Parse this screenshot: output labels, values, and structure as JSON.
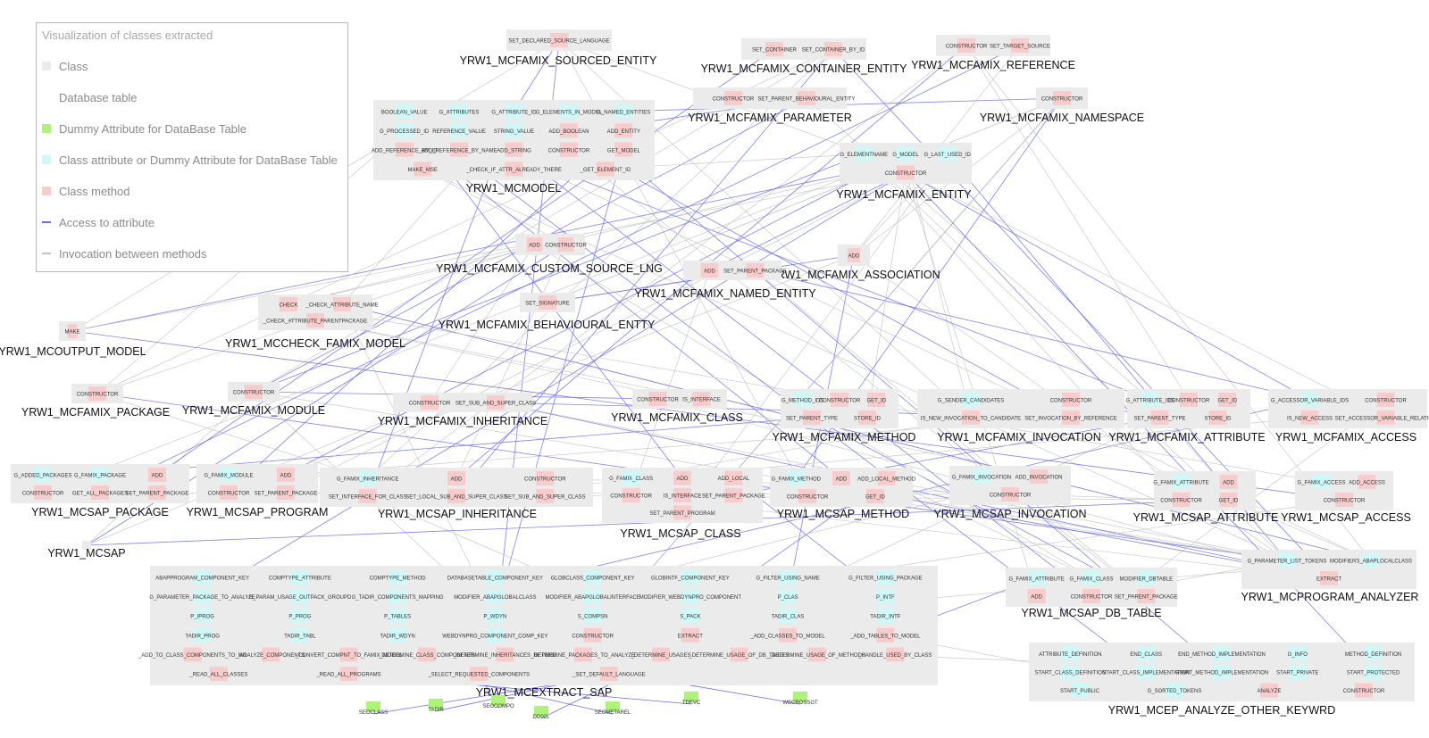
{
  "legend": {
    "title": "Visualization of classes extracted",
    "items": [
      {
        "label": "Class",
        "kind": "swatch",
        "color": "#ebebeb"
      },
      {
        "label": "Database table",
        "kind": "swatch",
        "color": "#ffffff"
      },
      {
        "label": "Dummy Attribute for DataBase Table",
        "kind": "swatch",
        "color": "#aef27a"
      },
      {
        "label": "Class attribute or Dummy Attribute for DataBase Table",
        "kind": "swatch",
        "color": "#cff8f8"
      },
      {
        "label": "Class method",
        "kind": "swatch",
        "color": "#f8cccc"
      },
      {
        "label": "Access to attribute",
        "kind": "line",
        "color": "#6c6ce6"
      },
      {
        "label": "Invocation between methods",
        "kind": "line",
        "color": "#c4c4c4"
      }
    ]
  },
  "colors": {
    "class_bg": "#ebebeb",
    "attribute": "#cff8f8",
    "method": "#f8cccc",
    "dummy": "#aef27a",
    "access_edge": "#6c6ce6",
    "invocation_edge": "#c4c4c4"
  },
  "classes": [
    {
      "name": "YRW1_MCFAMIX_SOURCED_ENTITY",
      "members": [
        {
          "t": "m",
          "n": "SET_DECLARED_SOURCE_LANGUAGE"
        }
      ]
    },
    {
      "name": "YRW1_MCFAMIX_CONTAINER_ENTITY",
      "members": [
        {
          "t": "m",
          "n": "SET_CONTAINER"
        },
        {
          "t": "m",
          "n": "SET_CONTAINER_BY_ID"
        }
      ]
    },
    {
      "name": "YRW1_MCFAMIX_REFERENCE",
      "members": [
        {
          "t": "m",
          "n": "CONSTRUCTOR"
        },
        {
          "t": "m",
          "n": "SET_TARGET_SOURCE"
        }
      ]
    },
    {
      "name": "YRW1_MCFAMIX_NAMESPACE",
      "members": [
        {
          "t": "m",
          "n": "CONSTRUCTOR"
        }
      ]
    },
    {
      "name": "YRW1_MCFAMIX_PARAMETER",
      "members": [
        {
          "t": "m",
          "n": "CONSTRUCTOR"
        },
        {
          "t": "m",
          "n": "SET_PARENT_BEHAVIOURAL_ENTITY"
        }
      ]
    },
    {
      "name": "YRW1_MCMODEL",
      "members": [
        {
          "t": "a",
          "n": "BOOLEAN_VALUE"
        },
        {
          "t": "a",
          "n": "G_ATTRIBUTES"
        },
        {
          "t": "a",
          "n": "G_ATTRIBUTE_ID"
        },
        {
          "t": "a",
          "n": "G_ELEMENTS_IN_MODEL"
        },
        {
          "t": "a",
          "n": "G_NAMED_ENTITIES"
        },
        {
          "t": "a",
          "n": "G_PROCESSED_ID"
        },
        {
          "t": "a",
          "n": "REFERENCE_VALUE"
        },
        {
          "t": "a",
          "n": "STRING_VALUE"
        },
        {
          "t": "m",
          "n": "ADD_BOOLEAN"
        },
        {
          "t": "m",
          "n": "ADD_ENTITY"
        },
        {
          "t": "m",
          "n": "ADD_REFERENCE_BY_ID"
        },
        {
          "t": "m",
          "n": "ADD_REFERENCE_BY_NAME"
        },
        {
          "t": "m",
          "n": "ADD_STRING"
        },
        {
          "t": "m",
          "n": "CONSTRUCTOR"
        },
        {
          "t": "m",
          "n": "GET_MODEL"
        },
        {
          "t": "m",
          "n": "MAKE_MSE"
        },
        {
          "t": "m",
          "n": "_CHECK_IF_ATTR_ALREADY_THERE"
        },
        {
          "t": "m",
          "n": "_GET_ELEMENT_ID"
        }
      ]
    },
    {
      "name": "YRW1_MCFAMIX_ENTITY",
      "members": [
        {
          "t": "a",
          "n": "G_ELEMENTNAME"
        },
        {
          "t": "a",
          "n": "G_MODEL"
        },
        {
          "t": "a",
          "n": "G_LAST_USED_ID"
        },
        {
          "t": "m",
          "n": "CONSTRUCTOR"
        }
      ]
    },
    {
      "name": "YRW1_MCFAMIX_CUSTOM_SOURCE_LNG",
      "members": [
        {
          "t": "m",
          "n": "ADD"
        },
        {
          "t": "m",
          "n": "CONSTRUCTOR"
        }
      ]
    },
    {
      "name": "YRW1_MCFAMIX_ASSOCIATION",
      "members": [
        {
          "t": "m",
          "n": "ADD"
        }
      ]
    },
    {
      "name": "YRW1_MCFAMIX_NAMED_ENTITY",
      "members": [
        {
          "t": "m",
          "n": "ADD"
        },
        {
          "t": "m",
          "n": "SET_PARENT_PACKAGE"
        }
      ]
    },
    {
      "name": "YRW1_MCFAMIX_BEHAVIOURAL_ENTTY",
      "members": [
        {
          "t": "m",
          "n": "SET_SIGNATURE"
        }
      ]
    },
    {
      "name": "YRW1_MCCHECK_FAMIX_MODEL",
      "members": [
        {
          "t": "m",
          "n": "CHECK"
        },
        {
          "t": "m",
          "n": "_CHECK_ATTRIBUTE_NAME"
        },
        {
          "t": "m",
          "n": "_CHECK_ATTRIBUTE_PARENTPACKAGE"
        }
      ]
    },
    {
      "name": "YRW1_MCOUTPUT_MODEL",
      "members": [
        {
          "t": "m",
          "n": "MAKE"
        }
      ]
    },
    {
      "name": "YRW1_MCFAMIX_PACKAGE",
      "members": [
        {
          "t": "m",
          "n": "CONSTRUCTOR"
        }
      ]
    },
    {
      "name": "YRW1_MCFAMIX_MODULE",
      "members": [
        {
          "t": "m",
          "n": "CONSTRUCTOR"
        }
      ]
    },
    {
      "name": "YRW1_MCFAMIX_INHERITANCE",
      "members": [
        {
          "t": "m",
          "n": "CONSTRUCTOR"
        },
        {
          "t": "m",
          "n": "SET_SUB_AND_SUPER_CLASS"
        }
      ]
    },
    {
      "name": "YRW1_MCFAMIX_CLASS",
      "members": [
        {
          "t": "m",
          "n": "CONSTRUCTOR"
        },
        {
          "t": "m",
          "n": "IS_INTERFACE"
        }
      ]
    },
    {
      "name": "YRW1_MCFAMIX_METHOD",
      "members": [
        {
          "t": "a",
          "n": "G_METHOD_IDS"
        },
        {
          "t": "m",
          "n": "CONSTRUCTOR"
        },
        {
          "t": "m",
          "n": "GET_ID"
        },
        {
          "t": "m",
          "n": "SET_PARENT_TYPE"
        },
        {
          "t": "m",
          "n": "STORE_ID"
        }
      ]
    },
    {
      "name": "YRW1_MCFAMIX_INVOCATION",
      "members": [
        {
          "t": "a",
          "n": "G_SENDER_CANDIDATES"
        },
        {
          "t": "m",
          "n": "CONSTRUCTOR"
        },
        {
          "t": "m",
          "n": "IS_NEW_INVOCATION_TO_CANDIDATE"
        },
        {
          "t": "m",
          "n": "SET_INVOCATION_BY_REFERENCE"
        }
      ]
    },
    {
      "name": "YRW1_MCFAMIX_ATTRIBUTE",
      "members": [
        {
          "t": "a",
          "n": "G_ATTRIBUTE_IDS"
        },
        {
          "t": "m",
          "n": "CONSTRUCTOR"
        },
        {
          "t": "m",
          "n": "GET_ID"
        },
        {
          "t": "m",
          "n": "SET_PARENT_TYPE"
        },
        {
          "t": "m",
          "n": "STORE_ID"
        }
      ]
    },
    {
      "name": "YRW1_MCFAMIX_ACCESS",
      "members": [
        {
          "t": "a",
          "n": "G_ACCESSOR_VARIABLE_IDS"
        },
        {
          "t": "m",
          "n": "CONSTRUCTOR"
        },
        {
          "t": "m",
          "n": "IS_NEW_ACCESS"
        },
        {
          "t": "m",
          "n": "SET_ACCESSOR_VARIABLE_RELATION"
        }
      ]
    },
    {
      "name": "YRW1_MCSAP_PACKAGE",
      "members": [
        {
          "t": "a",
          "n": "G_ADDED_PACKAGES"
        },
        {
          "t": "a",
          "n": "G_FAMIX_PACKAGE"
        },
        {
          "t": "m",
          "n": "ADD"
        },
        {
          "t": "m",
          "n": "CONSTRUCTOR"
        },
        {
          "t": "m",
          "n": "GET_ALL_PACKAGES"
        },
        {
          "t": "m",
          "n": "SET_PARENT_PACKAGE"
        }
      ]
    },
    {
      "name": "YRW1_MCSAP_PROGRAM",
      "members": [
        {
          "t": "a",
          "n": "G_FAMIX_MODULE"
        },
        {
          "t": "m",
          "n": "ADD"
        },
        {
          "t": "m",
          "n": "CONSTRUCTOR"
        },
        {
          "t": "m",
          "n": "SET_PARENT_PACKAGE"
        }
      ]
    },
    {
      "name": "YRW1_MCSAP_INHERITANCE",
      "members": [
        {
          "t": "a",
          "n": "G_FAMIX_INHERITANCE"
        },
        {
          "t": "m",
          "n": "ADD"
        },
        {
          "t": "m",
          "n": "CONSTRUCTOR"
        },
        {
          "t": "m",
          "n": "SET_INTERFACE_FOR_CLASS"
        },
        {
          "t": "m",
          "n": "SET_LOCAL_SUB_AND_SUPER_CLASS"
        },
        {
          "t": "m",
          "n": "SET_SUB_AND_SUPER_CLASS"
        }
      ]
    },
    {
      "name": "YRW1_MCSAP_CLASS",
      "members": [
        {
          "t": "a",
          "n": "G_FAMIX_CLASS"
        },
        {
          "t": "m",
          "n": "ADD"
        },
        {
          "t": "m",
          "n": "ADD_LOCAL"
        },
        {
          "t": "m",
          "n": "CONSTRUCTOR"
        },
        {
          "t": "m",
          "n": "IS_INTERFACE"
        },
        {
          "t": "m",
          "n": "SET_PARENT_PACKAGE"
        },
        {
          "t": "m",
          "n": "SET_PARENT_PROGRAM"
        }
      ]
    },
    {
      "name": "YRW1_MCSAP_METHOD",
      "members": [
        {
          "t": "a",
          "n": "G_FAMIX_METHOD"
        },
        {
          "t": "m",
          "n": "ADD"
        },
        {
          "t": "m",
          "n": "ADD_LOCAL_METHOD"
        },
        {
          "t": "m",
          "n": "CONSTRUCTOR"
        },
        {
          "t": "m",
          "n": "GET_ID"
        }
      ]
    },
    {
      "name": "YRW1_MCSAP_INVOCATION",
      "members": [
        {
          "t": "a",
          "n": "G_FAMIX_INVOCATION"
        },
        {
          "t": "m",
          "n": "ADD_INVOCATION"
        },
        {
          "t": "m",
          "n": "CONSTRUCTOR"
        }
      ]
    },
    {
      "name": "YRW1_MCSAP_ATTRIBUTE",
      "members": [
        {
          "t": "a",
          "n": "G_FAMIX_ATTRIBUTE"
        },
        {
          "t": "m",
          "n": "ADD"
        },
        {
          "t": "m",
          "n": "CONSTRUCTOR"
        },
        {
          "t": "m",
          "n": "GET_ID"
        }
      ]
    },
    {
      "name": "YRW1_MCSAP_ACCESS",
      "members": [
        {
          "t": "a",
          "n": "G_FAMIX_ACCESS"
        },
        {
          "t": "m",
          "n": "ADD_ACCESS"
        },
        {
          "t": "m",
          "n": "CONSTRUCTOR"
        }
      ]
    },
    {
      "name": "YRW1_MCSAP",
      "members": []
    },
    {
      "name": "YRW1_MCPROGRAM_ANALYZER",
      "members": [
        {
          "t": "a",
          "n": "G_PARAMETER_LIST_TOKENS"
        },
        {
          "t": "a",
          "n": "MODIFIERS_ABAPLOCALCLASS"
        },
        {
          "t": "m",
          "n": "EXTRACT"
        }
      ]
    },
    {
      "name": "YRW1_MCSAP_DB_TABLE",
      "members": [
        {
          "t": "a",
          "n": "G_FAMIX_ATTRIBUTE"
        },
        {
          "t": "a",
          "n": "G_FAMIX_CLASS"
        },
        {
          "t": "a",
          "n": "MODIFIER_DBTABLE"
        },
        {
          "t": "m",
          "n": "ADD"
        },
        {
          "t": "m",
          "n": "CONSTRUCTOR"
        },
        {
          "t": "m",
          "n": "SET_PARENT_PACKAGE"
        }
      ]
    },
    {
      "name": "YRW1_MCEXTRACT_SAP",
      "members": [
        {
          "t": "a",
          "n": "ABAPPROGRAM_COMPONENT_KEY"
        },
        {
          "t": "a",
          "n": "COMPTYPE_ATTRIBUTE"
        },
        {
          "t": "a",
          "n": "COMPTYPE_METHOD"
        },
        {
          "t": "a",
          "n": "DATABASETABLE_COMPONENT_KEY"
        },
        {
          "t": "a",
          "n": "GLOBCLASS_COMPONENT_KEY"
        },
        {
          "t": "a",
          "n": "GLOBINTF_COMPONENT_KEY"
        },
        {
          "t": "a",
          "n": "G_FILTER_USING_NAME"
        },
        {
          "t": "a",
          "n": "G_FILTER_USING_PACKAGE"
        },
        {
          "t": "a",
          "n": "G_PARAMETER_PACKAGE_TO_ANALYZE"
        },
        {
          "t": "a",
          "n": "G_PARAM_USAGE_OUTPACK_GROUPD"
        },
        {
          "t": "a",
          "n": "G_TADIR_COMPONENTS_MAPPING"
        },
        {
          "t": "a",
          "n": "MODIFIER_ABAPGLOBALCLASS"
        },
        {
          "t": "a",
          "n": "MODIFIER_ABAPGLOBALINTERFACE"
        },
        {
          "t": "a",
          "n": "MODIFIER_WEBDYNPRO_COMPONENT"
        },
        {
          "t": "a",
          "n": "P_CLAS"
        },
        {
          "t": "a",
          "n": "P_INTF"
        },
        {
          "t": "a",
          "n": "P_IPROG"
        },
        {
          "t": "a",
          "n": "P_PROG"
        },
        {
          "t": "a",
          "n": "P_TABLES"
        },
        {
          "t": "a",
          "n": "P_WDYN"
        },
        {
          "t": "a",
          "n": "S_COMPSN"
        },
        {
          "t": "a",
          "n": "S_PACK"
        },
        {
          "t": "a",
          "n": "TADIR_CLAS"
        },
        {
          "t": "a",
          "n": "TADIR_INTF"
        },
        {
          "t": "a",
          "n": "TADIR_PROG"
        },
        {
          "t": "a",
          "n": "TADIR_TABL"
        },
        {
          "t": "a",
          "n": "TADIR_WDYN"
        },
        {
          "t": "a",
          "n": "WEBDYNPRO_COMPONENT_COMP_KEY"
        },
        {
          "t": "m",
          "n": "CONSTRUCTOR"
        },
        {
          "t": "m",
          "n": "EXTRACT"
        },
        {
          "t": "m",
          "n": "_ADD_CLASSES_TO_MODEL"
        },
        {
          "t": "m",
          "n": "_ADD_TABLES_TO_MODEL"
        },
        {
          "t": "m",
          "n": "_ADD_TO_CLASS_COMPONENTS_TO_MO"
        },
        {
          "t": "m",
          "n": "_ANALYZE_COMPONENTS"
        },
        {
          "t": "m",
          "n": "_CONVERT_COMPNT_TO_FAMIX_MODEL"
        },
        {
          "t": "m",
          "n": "_DETERMINE_CLASS_COMPONENTS"
        },
        {
          "t": "m",
          "n": "_DETERMINE_INHERITANCES_BETWEE"
        },
        {
          "t": "m",
          "n": "_DETERMINE_PACKAGES_TO_ANALYZE"
        },
        {
          "t": "m",
          "n": "_DETERMINE_USAGES"
        },
        {
          "t": "m",
          "n": "_DETERMINE_USAGE_OF_DB_TABLES"
        },
        {
          "t": "m",
          "n": "_DETERMINE_USAGE_OF_METHODS"
        },
        {
          "t": "m",
          "n": "_HANDLE_USED_BY_CLASS"
        },
        {
          "t": "m",
          "n": "_READ_ALL_CLASSES"
        },
        {
          "t": "m",
          "n": "_READ_ALL_PROGRAMS"
        },
        {
          "t": "m",
          "n": "_SELECT_REQUESTED_COMPONENTS"
        },
        {
          "t": "m",
          "n": "_SET_DEFAULT_LANGUAGE"
        }
      ]
    },
    {
      "name": "YRW1_MCEP_ANALYZE_OTHER_KEYWRD",
      "members": [
        {
          "t": "a",
          "n": "ATTRIBUTE_DEFINITION"
        },
        {
          "t": "a",
          "n": "END_CLASS"
        },
        {
          "t": "a",
          "n": "END_METHOD_IMPLEMENTATION"
        },
        {
          "t": "a",
          "n": "G_INFO"
        },
        {
          "t": "a",
          "n": "METHOD_DEFINITION"
        },
        {
          "t": "a",
          "n": "START_CLASS_DEFINITION"
        },
        {
          "t": "a",
          "n": "START_CLASS_IMPLEMENTATION"
        },
        {
          "t": "a",
          "n": "START_METHOD_IMPLEMENTATION"
        },
        {
          "t": "a",
          "n": "START_PRIVATE"
        },
        {
          "t": "a",
          "n": "START_PROTECTED"
        },
        {
          "t": "a",
          "n": "START_PUBLIC"
        },
        {
          "t": "a",
          "n": "G_SORTED_TOKENS"
        },
        {
          "t": "m",
          "n": "ANALYZE"
        },
        {
          "t": "m",
          "n": "CONSTRUCTOR"
        }
      ]
    }
  ],
  "db_tables": [
    "SEOCLASS",
    "TADIR",
    "SEOCOMPO",
    "DD02L",
    "SEOMETAREL",
    "TDEVC",
    "WBCROSSGT"
  ]
}
